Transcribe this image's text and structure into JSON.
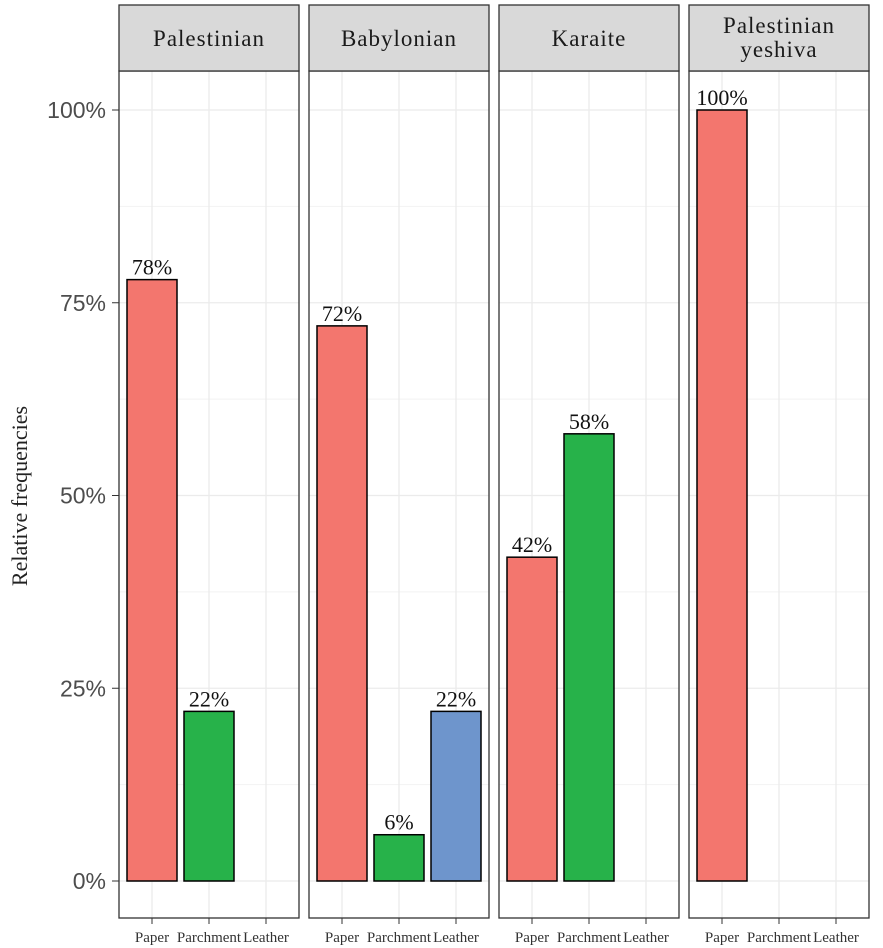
{
  "chart_data": {
    "type": "bar",
    "ylabel": "Relative frequencies",
    "ylim": [
      0,
      100
    ],
    "y_ticks": [
      0,
      25,
      50,
      75,
      100
    ],
    "y_tick_labels": [
      "0%",
      "25%",
      "50%",
      "75%",
      "100%"
    ],
    "categories": [
      "Paper",
      "Parchment",
      "Leather"
    ],
    "grid": true,
    "colors": {
      "Paper": "#f3766e",
      "Parchment": "#27b24a",
      "Leather": "#6e95cc"
    },
    "panels": [
      {
        "title_lines": [
          "Palestinian"
        ],
        "values": [
          78,
          22,
          0
        ],
        "labels": [
          "78%",
          "22%",
          ""
        ]
      },
      {
        "title_lines": [
          "Babylonian"
        ],
        "values": [
          72,
          6,
          22
        ],
        "labels": [
          "72%",
          "6%",
          "22%"
        ]
      },
      {
        "title_lines": [
          "Karaite"
        ],
        "values": [
          42,
          58,
          0
        ],
        "labels": [
          "42%",
          "58%",
          ""
        ]
      },
      {
        "title_lines": [
          "Palestinian",
          "yeshiva"
        ],
        "values": [
          100,
          0,
          0
        ],
        "labels": [
          "100%",
          "",
          ""
        ]
      }
    ]
  }
}
